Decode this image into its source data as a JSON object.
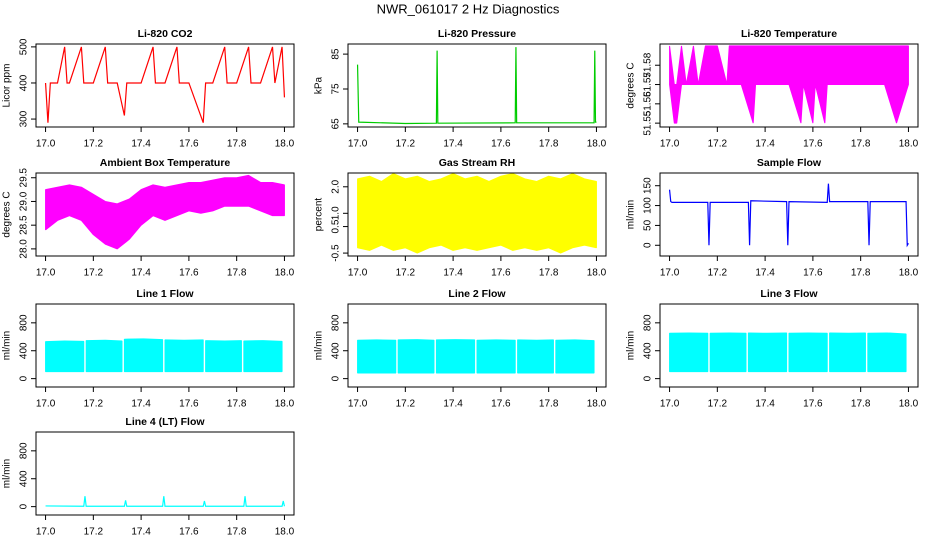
{
  "title": "NWR_061017  2 Hz Diagnostics",
  "chart_data": [
    {
      "type": "line",
      "title": "Li-820 CO2",
      "ylabel": "Licor ppm",
      "color": "#ff0000",
      "x": [
        17.0,
        17.01,
        17.02,
        17.05,
        17.08,
        17.09,
        17.1,
        17.15,
        17.16,
        17.2,
        17.25,
        17.26,
        17.3,
        17.33,
        17.34,
        17.4,
        17.45,
        17.46,
        17.5,
        17.55,
        17.56,
        17.6,
        17.66,
        17.67,
        17.7,
        17.75,
        17.76,
        17.8,
        17.85,
        17.86,
        17.9,
        17.95,
        17.96,
        17.99,
        18.0
      ],
      "values": [
        400,
        290,
        400,
        400,
        500,
        400,
        400,
        500,
        400,
        400,
        500,
        400,
        400,
        310,
        400,
        400,
        500,
        400,
        400,
        500,
        400,
        400,
        290,
        400,
        400,
        500,
        400,
        400,
        500,
        400,
        400,
        500,
        400,
        500,
        360
      ],
      "xlim": [
        16.96,
        18.04
      ],
      "xticks": [
        {
          "value": 17,
          "label": "17.0"
        },
        17.2,
        17.4,
        17.6,
        17.8,
        {
          "value": 18,
          "label": "18.0"
        }
      ],
      "ylim": [
        278,
        508
      ],
      "yticks": [
        300,
        400,
        500
      ]
    },
    {
      "type": "line",
      "title": "Li-820 Pressure",
      "ylabel": "kPa",
      "color": "#00cc00",
      "x": [
        17.0,
        17.005,
        17.2,
        17.33,
        17.333,
        17.336,
        17.66,
        17.663,
        17.666,
        17.99,
        17.993,
        17.996,
        18.0
      ],
      "values": [
        82,
        65.5,
        65.1,
        65.2,
        86,
        65.2,
        65.3,
        87,
        65.3,
        65.3,
        86,
        65.5,
        65.5
      ],
      "xlim": [
        16.96,
        18.04
      ],
      "xticks": [
        {
          "value": 17,
          "label": "17.0"
        },
        17.2,
        17.4,
        17.6,
        17.8,
        {
          "value": 18,
          "label": "18.0"
        }
      ],
      "ylim": [
        64.1,
        87.9
      ],
      "yticks": [
        65,
        75,
        85
      ]
    },
    {
      "type": "band",
      "title": "Li-820 Temperature",
      "ylabel": "degrees C",
      "color": "#ff00ff",
      "x": [
        17.0,
        17.02,
        17.03,
        17.05,
        17.07,
        17.1,
        17.12,
        17.15,
        17.2,
        17.24,
        17.25,
        17.3,
        17.35,
        17.36,
        17.4,
        17.5,
        17.55,
        17.56,
        17.6,
        17.61,
        17.65,
        17.66,
        17.7,
        17.8,
        17.9,
        17.95,
        18.0
      ],
      "upper": [
        51.59,
        51.57,
        51.57,
        51.59,
        51.57,
        51.59,
        51.57,
        51.59,
        51.59,
        51.57,
        51.59,
        51.59,
        51.59,
        51.59,
        51.59,
        51.59,
        51.59,
        51.59,
        51.59,
        51.59,
        51.59,
        51.59,
        51.59,
        51.59,
        51.59,
        51.59,
        51.59
      ],
      "lower": [
        51.57,
        51.55,
        51.55,
        51.57,
        51.57,
        51.57,
        51.57,
        51.57,
        51.57,
        51.57,
        51.57,
        51.57,
        51.55,
        51.57,
        51.57,
        51.57,
        51.55,
        51.57,
        51.55,
        51.57,
        51.55,
        51.57,
        51.57,
        51.57,
        51.57,
        51.55,
        51.57
      ],
      "xlim": [
        16.96,
        18.04
      ],
      "xticks": [
        {
          "value": 17,
          "label": "17.0"
        },
        17.2,
        17.4,
        17.6,
        17.8,
        {
          "value": 18,
          "label": "18.0"
        }
      ],
      "ylim": [
        51.548,
        51.591
      ],
      "yticks": [
        51.55,
        51.56,
        51.57,
        51.58
      ]
    },
    {
      "type": "band",
      "title": "Ambient Box Temperature",
      "ylabel": "degrees C",
      "color": "#ff00ff",
      "x": [
        17.0,
        17.05,
        17.1,
        17.15,
        17.2,
        17.25,
        17.3,
        17.35,
        17.4,
        17.45,
        17.5,
        17.55,
        17.6,
        17.65,
        17.7,
        17.75,
        17.8,
        17.85,
        17.9,
        17.95,
        18.0
      ],
      "upper": [
        29.25,
        29.3,
        29.35,
        29.3,
        29.15,
        29.0,
        28.95,
        29.05,
        29.25,
        29.35,
        29.3,
        29.35,
        29.4,
        29.4,
        29.45,
        29.5,
        29.5,
        29.55,
        29.4,
        29.4,
        29.35
      ],
      "lower": [
        28.4,
        28.6,
        28.7,
        28.6,
        28.3,
        28.1,
        28.0,
        28.2,
        28.5,
        28.7,
        28.6,
        28.7,
        28.8,
        28.75,
        28.8,
        28.9,
        28.9,
        28.9,
        28.8,
        28.7,
        28.7
      ],
      "xlim": [
        16.96,
        18.04
      ],
      "xticks": [
        {
          "value": 17,
          "label": "17.0"
        },
        17.2,
        17.4,
        17.6,
        17.8,
        {
          "value": 18,
          "label": "18.0"
        }
      ],
      "ylim": [
        27.85,
        29.6
      ],
      "yticks": [
        {
          "value": 28,
          "label": "28.0"
        },
        28.5,
        {
          "value": 29,
          "label": "29.0"
        },
        29.5
      ]
    },
    {
      "type": "band",
      "title": "Gas Stream RH",
      "ylabel": "percent",
      "color": "#ffff00",
      "x": [
        17.0,
        17.05,
        17.1,
        17.15,
        17.2,
        17.25,
        17.3,
        17.35,
        17.4,
        17.45,
        17.5,
        17.55,
        17.6,
        17.65,
        17.7,
        17.75,
        17.8,
        17.85,
        17.9,
        17.95,
        18.0
      ],
      "upper": [
        2.3,
        2.4,
        2.2,
        2.5,
        2.3,
        2.4,
        2.2,
        2.3,
        2.5,
        2.3,
        2.4,
        2.2,
        2.4,
        2.5,
        2.3,
        2.2,
        2.4,
        2.3,
        2.5,
        2.3,
        2.2
      ],
      "lower": [
        -0.3,
        -0.4,
        -0.2,
        -0.4,
        -0.3,
        -0.5,
        -0.3,
        -0.2,
        -0.4,
        -0.3,
        -0.4,
        -0.3,
        -0.2,
        -0.4,
        -0.3,
        -0.4,
        -0.3,
        -0.5,
        -0.3,
        -0.2,
        -0.3
      ],
      "xlim": [
        16.96,
        18.04
      ],
      "xticks": [
        {
          "value": 17,
          "label": "17.0"
        },
        17.2,
        17.4,
        17.6,
        17.8,
        {
          "value": 18,
          "label": "18.0"
        }
      ],
      "ylim": [
        -0.61,
        2.52
      ],
      "yticks": [
        -0.5,
        0.5,
        {
          "value": 1,
          "label": "1.0"
        },
        {
          "value": 2,
          "label": "2.0"
        }
      ]
    },
    {
      "type": "line",
      "title": "Sample Flow",
      "ylabel": "ml/min",
      "color": "#0000ff",
      "x": [
        17.0,
        17.005,
        17.01,
        17.16,
        17.165,
        17.17,
        17.33,
        17.335,
        17.34,
        17.49,
        17.495,
        17.5,
        17.66,
        17.665,
        17.67,
        17.83,
        17.835,
        17.84,
        17.99,
        17.995,
        18.0
      ],
      "values": [
        140,
        110,
        108,
        108,
        0,
        108,
        108,
        0,
        112,
        110,
        0,
        110,
        108,
        155,
        110,
        110,
        0,
        110,
        110,
        0,
        5
      ],
      "xlim": [
        16.96,
        18.04
      ],
      "xticks": [
        {
          "value": 17,
          "label": "17.0"
        },
        17.2,
        17.4,
        17.6,
        17.8,
        {
          "value": 18,
          "label": "18.0"
        }
      ],
      "ylim": [
        -27,
        182
      ],
      "yticks": [
        0,
        50,
        100,
        150
      ]
    },
    {
      "type": "band",
      "title": "Line 1 Flow",
      "ylabel": "ml/min",
      "color": "#00ffff",
      "x": [
        17.0,
        17.08,
        17.16,
        17.165,
        17.17,
        17.25,
        17.32,
        17.325,
        17.33,
        17.41,
        17.49,
        17.495,
        17.5,
        17.58,
        17.66,
        17.665,
        17.67,
        17.75,
        17.82,
        17.825,
        17.83,
        17.91,
        17.99
      ],
      "upper": [
        530,
        540,
        535,
        null,
        545,
        550,
        540,
        null,
        565,
        570,
        560,
        null,
        555,
        550,
        555,
        null,
        545,
        540,
        545,
        null,
        540,
        545,
        535
      ],
      "lower": [
        100,
        100,
        100,
        null,
        100,
        100,
        100,
        null,
        100,
        100,
        100,
        null,
        100,
        100,
        100,
        null,
        100,
        100,
        100,
        null,
        100,
        100,
        100
      ],
      "xlim": [
        16.96,
        18.04
      ],
      "xticks": [
        {
          "value": 17,
          "label": "17.0"
        },
        17.2,
        17.4,
        17.6,
        17.8,
        {
          "value": 18,
          "label": "18.0"
        }
      ],
      "ylim": [
        -120,
        1070
      ],
      "yticks": [
        0,
        400,
        800
      ]
    },
    {
      "type": "band",
      "title": "Line 2 Flow",
      "ylabel": "ml/min",
      "color": "#00ffff",
      "x": [
        17.0,
        17.08,
        17.16,
        17.165,
        17.17,
        17.25,
        17.32,
        17.325,
        17.33,
        17.41,
        17.49,
        17.495,
        17.5,
        17.58,
        17.66,
        17.665,
        17.67,
        17.75,
        17.82,
        17.825,
        17.83,
        17.91,
        17.99
      ],
      "upper": [
        550,
        555,
        550,
        null,
        555,
        560,
        550,
        null,
        555,
        560,
        555,
        null,
        550,
        555,
        550,
        null,
        555,
        550,
        555,
        null,
        550,
        555,
        545
      ],
      "lower": [
        80,
        80,
        80,
        null,
        80,
        80,
        80,
        null,
        80,
        80,
        80,
        null,
        80,
        80,
        80,
        null,
        80,
        80,
        80,
        null,
        80,
        80,
        80
      ],
      "xlim": [
        16.96,
        18.04
      ],
      "xticks": [
        {
          "value": 17,
          "label": "17.0"
        },
        17.2,
        17.4,
        17.6,
        17.8,
        {
          "value": 18,
          "label": "18.0"
        }
      ],
      "ylim": [
        -120,
        1070
      ],
      "yticks": [
        0,
        400,
        800
      ]
    },
    {
      "type": "band",
      "title": "Line 3 Flow",
      "ylabel": "ml/min",
      "color": "#00ffff",
      "x": [
        17.0,
        17.08,
        17.16,
        17.165,
        17.17,
        17.25,
        17.32,
        17.325,
        17.33,
        17.41,
        17.49,
        17.495,
        17.5,
        17.58,
        17.66,
        17.665,
        17.67,
        17.75,
        17.82,
        17.825,
        17.83,
        17.91,
        17.99
      ],
      "upper": [
        650,
        655,
        650,
        null,
        650,
        655,
        650,
        null,
        655,
        650,
        655,
        null,
        650,
        655,
        650,
        null,
        655,
        650,
        655,
        null,
        650,
        655,
        640
      ],
      "lower": [
        100,
        100,
        100,
        null,
        100,
        100,
        100,
        null,
        100,
        100,
        100,
        null,
        100,
        100,
        100,
        null,
        100,
        100,
        100,
        null,
        100,
        100,
        100
      ],
      "xlim": [
        16.96,
        18.04
      ],
      "xticks": [
        {
          "value": 17,
          "label": "17.0"
        },
        17.2,
        17.4,
        17.6,
        17.8,
        {
          "value": 18,
          "label": "18.0"
        }
      ],
      "ylim": [
        -120,
        1070
      ],
      "yticks": [
        0,
        400,
        800
      ]
    },
    {
      "type": "line",
      "title": "Line 4 (LT) Flow",
      "ylabel": "ml/min",
      "color": "#00ffff",
      "x": [
        17.0,
        17.16,
        17.165,
        17.17,
        17.33,
        17.335,
        17.34,
        17.49,
        17.495,
        17.5,
        17.66,
        17.665,
        17.67,
        17.83,
        17.835,
        17.84,
        17.99,
        17.995,
        18.0
      ],
      "values": [
        10,
        5,
        150,
        5,
        5,
        90,
        5,
        5,
        150,
        5,
        5,
        80,
        5,
        5,
        150,
        5,
        5,
        80,
        5
      ],
      "xlim": [
        16.96,
        18.04
      ],
      "xticks": [
        {
          "value": 17,
          "label": "17.0"
        },
        17.2,
        17.4,
        17.6,
        17.8,
        {
          "value": 18,
          "label": "18.0"
        }
      ],
      "ylim": [
        -120,
        1070
      ],
      "yticks": [
        0,
        400,
        800
      ]
    }
  ]
}
